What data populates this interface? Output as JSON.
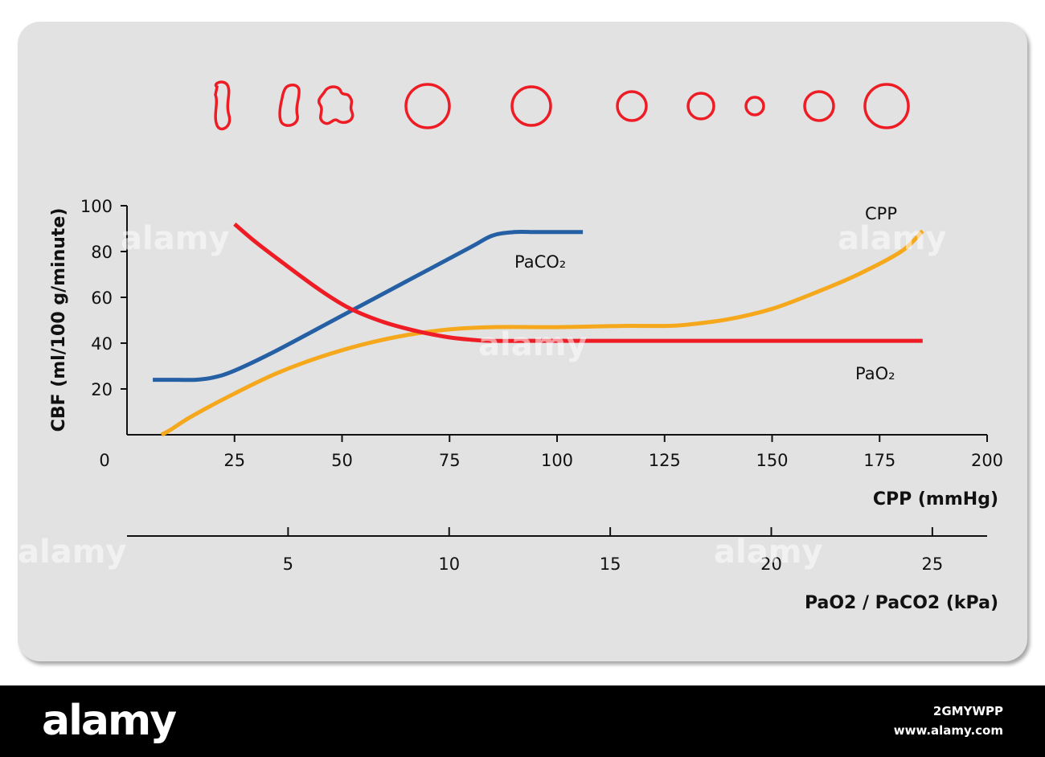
{
  "watermark": "alamy",
  "chart_data": {
    "type": "line",
    "title": "",
    "xlabel": "CPP (mmHg)",
    "x2label": "PaO2 / PaCO2 (kPa)",
    "ylabel": "CBF (ml/100 g/minute)",
    "xlim": [
      0,
      200
    ],
    "x2lim": [
      0,
      26.7
    ],
    "ylim": [
      0,
      100
    ],
    "xticks": [
      0,
      25,
      50,
      75,
      100,
      125,
      150,
      175,
      200
    ],
    "x2ticks": [
      5,
      10,
      15,
      20,
      25
    ],
    "yticks": [
      20,
      40,
      60,
      80,
      100
    ],
    "grid": false,
    "series": [
      {
        "name": "PaCO₂",
        "color": "#2660a4",
        "x": [
          6,
          12,
          16,
          20,
          25,
          35,
          50,
          65,
          80,
          85,
          90,
          95,
          100,
          106
        ],
        "y": [
          24,
          24,
          24,
          25,
          28,
          37,
          52,
          67,
          82,
          87,
          88.5,
          88.5,
          88.5,
          88.5
        ]
      },
      {
        "name": "PaO₂",
        "color": "#ee1c24",
        "x": [
          25,
          30,
          37,
          45,
          52,
          60,
          68,
          75,
          80,
          85,
          100,
          125,
          150,
          185
        ],
        "y": [
          92,
          84,
          74,
          63,
          55,
          49,
          45,
          42.5,
          41.5,
          41,
          41,
          41,
          41,
          41
        ]
      },
      {
        "name": "CPP",
        "color": "#f5a81c",
        "x": [
          8,
          10,
          15,
          25,
          35,
          45,
          55,
          65,
          75,
          85,
          100,
          115,
          125,
          130,
          140,
          150,
          160,
          170,
          180,
          185
        ],
        "y": [
          0,
          2,
          8,
          18,
          27,
          34,
          39.5,
          43.5,
          46,
          47,
          47,
          47.5,
          47.5,
          48,
          50.5,
          55,
          62,
          70,
          80,
          89
        ]
      }
    ]
  },
  "pupil_row": [
    {
      "shape": "slit",
      "size": 1
    },
    {
      "shape": "blob",
      "size": 1
    },
    {
      "shape": "irregular",
      "size": 1
    },
    {
      "shape": "circle",
      "size": 27
    },
    {
      "shape": "circle",
      "size": 24
    },
    {
      "shape": "circle",
      "size": 18
    },
    {
      "shape": "circle",
      "size": 16
    },
    {
      "shape": "circle",
      "size": 11
    },
    {
      "shape": "circle",
      "size": 18
    },
    {
      "shape": "circle",
      "size": 27
    }
  ],
  "footer": {
    "logo": "alamy",
    "image_id": "2GMYWPP",
    "site": "www.alamy.com"
  }
}
